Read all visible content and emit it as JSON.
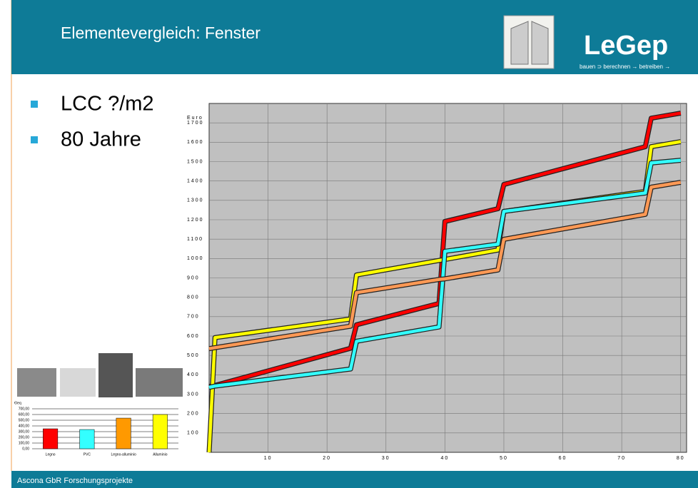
{
  "header": {
    "title": "Elementevergleich: Fenster",
    "logo": "LeGep",
    "tagline": "bauen ⊃ berechnen → betreiben →"
  },
  "bullets": [
    "LCC ?/m2",
    "80 Jahre"
  ],
  "footer": "Ascona GbR Forschungsprojekte",
  "chart_data": [
    {
      "type": "line",
      "ylabel": "Euro",
      "x": [
        0,
        1,
        24,
        25,
        39,
        40,
        49,
        50,
        74,
        75,
        80
      ],
      "xlim": [
        0,
        81
      ],
      "xticks": [
        10,
        20,
        30,
        40,
        50,
        60,
        70,
        80
      ],
      "ylim": [
        0,
        1800
      ],
      "yticks": [
        100,
        200,
        300,
        400,
        500,
        600,
        700,
        800,
        900,
        1000,
        1100,
        1200,
        1300,
        1400,
        1500,
        1600,
        1700
      ],
      "grid": true,
      "series": [
        {
          "color": "#ff0000",
          "values": [
            340,
            345,
            537,
            658,
            768,
            1191,
            1257,
            1382,
            1577,
            1724,
            1750
          ]
        },
        {
          "color": "#ffff00",
          "values": [
            0,
            592,
            688,
            915,
            990,
            995,
            1044,
            1243,
            1346,
            1577,
            1603
          ]
        },
        {
          "color": "#33ffff",
          "values": [
            335,
            342,
            430,
            573,
            647,
            1037,
            1074,
            1243,
            1338,
            1493,
            1507
          ]
        },
        {
          "color": "#ff9955",
          "values": [
            535,
            540,
            651,
            824,
            892,
            895,
            941,
            1099,
            1228,
            1368,
            1393
          ]
        }
      ]
    },
    {
      "type": "bar",
      "ylabel": "€/eq",
      "categories": [
        "Legno",
        "PVC",
        "Legno-alluminio",
        "Alluminio"
      ],
      "values": [
        350,
        337,
        537,
        600
      ],
      "colors": [
        "#ff0000",
        "#33ffff",
        "#ff9900",
        "#ffff00"
      ],
      "ylim": [
        0,
        700
      ],
      "yticks": [
        {
          "value": 0,
          "label": "0,00"
        },
        {
          "value": 100,
          "label": "100,00"
        },
        {
          "value": 200,
          "label": "200,00"
        },
        {
          "value": 300,
          "label": "300,00"
        },
        {
          "value": 400,
          "label": "400,00"
        },
        {
          "value": 500,
          "label": "500,00"
        },
        {
          "value": 600,
          "label": "600,00"
        },
        {
          "value": 700,
          "label": "700,00"
        }
      ],
      "grid": true
    }
  ]
}
